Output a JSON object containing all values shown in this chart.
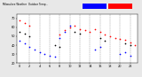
{
  "background_color": "#e8e8e8",
  "plot_bg_color": "#ffffff",
  "grid_color": "#888888",
  "red_color": "#ff0000",
  "blue_color": "#0000ff",
  "black_color": "#000000",
  "legend_blue_color": "#0000ff",
  "legend_red_color": "#ff0000",
  "temp_data": [
    [
      0,
      68
    ],
    [
      1,
      65
    ],
    [
      2,
      62
    ],
    [
      8,
      52
    ],
    [
      9,
      57
    ],
    [
      10,
      60
    ],
    [
      11,
      62
    ],
    [
      12,
      58
    ],
    [
      13,
      57
    ],
    [
      14,
      55
    ],
    [
      15,
      58
    ],
    [
      16,
      55
    ],
    [
      17,
      52
    ],
    [
      18,
      50
    ],
    [
      19,
      48
    ],
    [
      20,
      47
    ],
    [
      21,
      46
    ],
    [
      22,
      43
    ],
    [
      23,
      40
    ]
  ],
  "thsw_data": [
    [
      0,
      45
    ],
    [
      1,
      42
    ],
    [
      2,
      38
    ],
    [
      3,
      35
    ],
    [
      4,
      32
    ],
    [
      5,
      30
    ],
    [
      6,
      28
    ],
    [
      7,
      27
    ],
    [
      8,
      48
    ],
    [
      9,
      55
    ],
    [
      10,
      62
    ],
    [
      15,
      35
    ],
    [
      16,
      38
    ],
    [
      20,
      30
    ],
    [
      21,
      32
    ],
    [
      22,
      28
    ]
  ],
  "black_data": [
    [
      0,
      55
    ],
    [
      1,
      53
    ],
    [
      2,
      50
    ],
    [
      7,
      40
    ],
    [
      8,
      38
    ],
    [
      11,
      55
    ],
    [
      12,
      53
    ],
    [
      16,
      48
    ],
    [
      17,
      45
    ],
    [
      21,
      42
    ],
    [
      22,
      40
    ]
  ],
  "vline_positions": [
    2,
    4,
    6,
    8,
    10,
    12,
    14,
    16,
    18,
    20,
    22
  ],
  "ylim": [
    20,
    75
  ],
  "xlim": [
    -0.5,
    23.5
  ],
  "ytick_values": [
    20,
    30,
    40,
    50,
    60,
    70
  ],
  "dot_size": 1.5,
  "figwidth": 1.6,
  "figheight": 0.87,
  "dpi": 100
}
